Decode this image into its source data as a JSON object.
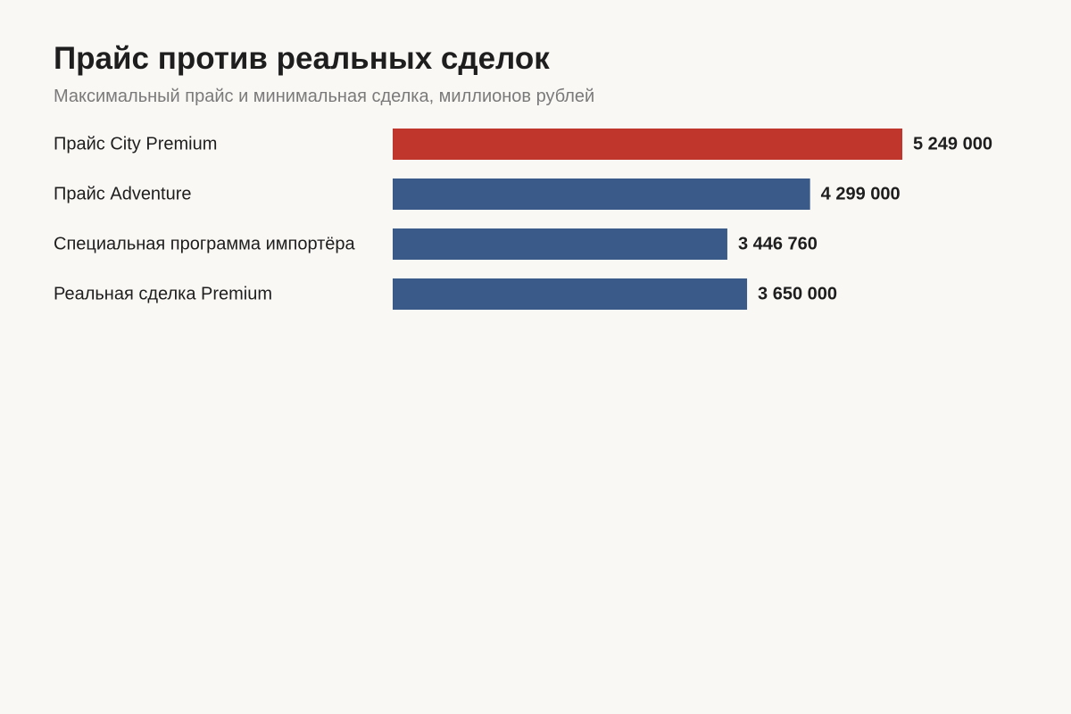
{
  "chart_data": {
    "type": "bar",
    "orientation": "horizontal",
    "title": "Прайс против реальных сделок",
    "subtitle": "Максимальный прайс и минимальная сделка, миллионов рублей",
    "categories": [
      "Прайс City Premium",
      "Прайс Adventure",
      "Специальная программа импортёра",
      "Реальная сделка Premium"
    ],
    "values": [
      5249000,
      4299000,
      3446760,
      3650000
    ],
    "value_labels": [
      "5 249 000",
      "4 299 000",
      "3 446 760",
      "3 650 000"
    ],
    "colors": [
      "#c0362c",
      "#3a5a8a",
      "#3a5a8a",
      "#3a5a8a"
    ],
    "xlabel": "",
    "ylabel": "",
    "grid": false,
    "legend": "none"
  }
}
